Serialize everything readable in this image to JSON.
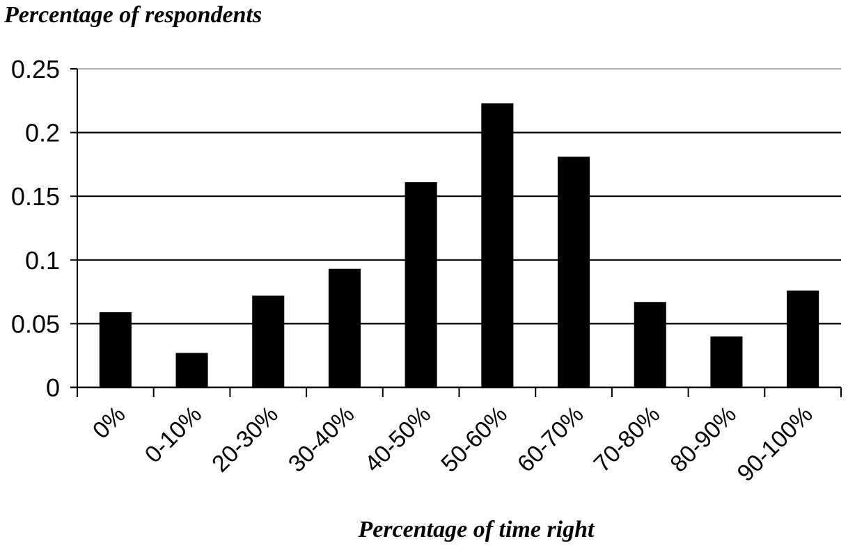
{
  "chart_data": {
    "type": "bar",
    "title": "",
    "ylabel": "Percentage of respondents",
    "xlabel": "Percentage of time right",
    "categories": [
      "0%",
      "0-10%",
      "20-30%",
      "30-40%",
      "40-50%",
      "50-60%",
      "60-70%",
      "70-80%",
      "80-90%",
      "90-100%"
    ],
    "values": [
      0.059,
      0.027,
      0.072,
      0.093,
      0.161,
      0.223,
      0.181,
      0.067,
      0.04,
      0.076
    ],
    "ylim": [
      0,
      0.25
    ],
    "yticks": [
      "0",
      "0.05",
      "0.1",
      "0.15",
      "0.2",
      "0.25"
    ],
    "grid": true,
    "legend": "none",
    "colors": {
      "bar": "#000000",
      "grid": "#000000",
      "axis": "#000000"
    }
  }
}
